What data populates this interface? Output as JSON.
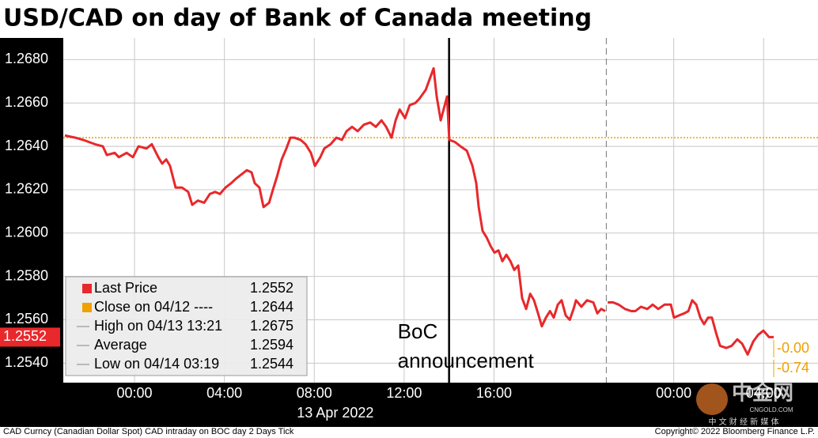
{
  "chart_data": {
    "type": "line",
    "title": "USD/CAD on day of Bank of Canada meeting",
    "x": [
      -3.1,
      -2.64,
      -2.29,
      -1.76,
      -1.41,
      -1.23,
      -0.88,
      -0.7,
      -0.35,
      -0.07,
      0.18,
      0.53,
      0.77,
      1.06,
      1.23,
      1.41,
      1.58,
      1.83,
      2.11,
      2.39,
      2.57,
      2.82,
      3.1,
      3.35,
      3.59,
      3.8,
      4.05,
      4.3,
      4.51,
      4.75,
      5.0,
      5.21,
      5.35,
      5.56,
      5.74,
      5.99,
      6.16,
      6.34,
      6.55,
      6.76,
      6.94,
      7.11,
      7.39,
      7.61,
      7.85,
      8.03,
      8.27,
      8.45,
      8.73,
      8.98,
      9.23,
      9.44,
      9.68,
      9.93,
      10.21,
      10.49,
      10.74,
      10.99,
      11.2,
      11.44,
      11.62,
      11.8,
      12.04,
      12.25,
      12.5,
      12.68,
      12.96,
      13.31,
      13.45,
      13.63,
      13.91,
      14.01,
      14.26,
      14.51,
      14.79,
      15.04,
      15.21,
      15.32,
      15.49,
      15.67,
      15.85,
      16.02,
      16.2,
      16.37,
      16.55,
      16.73,
      16.9,
      17.08,
      17.25,
      17.43,
      17.61,
      17.78,
      17.96,
      18.13,
      18.31,
      18.49,
      18.66,
      18.84,
      19.01,
      19.19,
      19.37,
      19.54,
      19.65,
      19.89,
      20.14,
      20.42,
      20.6,
      20.77,
      20.95,
      21.0,
      21.06,
      21.3,
      21.55,
      21.83,
      22.11,
      22.29,
      22.54,
      22.82,
      23.06,
      23.31,
      23.59,
      23.87,
      24.01,
      24.23,
      24.47,
      24.65,
      24.82,
      25.0,
      25.18,
      25.35,
      25.53,
      25.7,
      25.88,
      26.06,
      26.34,
      26.58,
      26.83,
      27.04,
      27.29,
      27.54,
      27.75,
      27.99,
      28.24,
      28.45
    ],
    "series": [
      {
        "name": "Last Price",
        "color": "#e8282b",
        "values": [
          1.2645,
          1.2644,
          1.2643,
          1.2641,
          1.264,
          1.2636,
          1.2637,
          1.2635,
          1.2637,
          1.2635,
          1.264,
          1.2639,
          1.2641,
          1.2635,
          1.2632,
          1.2634,
          1.2631,
          1.2621,
          1.2621,
          1.2619,
          1.2613,
          1.2615,
          1.2614,
          1.2618,
          1.2619,
          1.2618,
          1.2621,
          1.2623,
          1.2625,
          1.2627,
          1.2629,
          1.2628,
          1.2623,
          1.2621,
          1.2612,
          1.2614,
          1.262,
          1.2626,
          1.2634,
          1.2639,
          1.2644,
          1.2644,
          1.2643,
          1.2641,
          1.2637,
          1.2631,
          1.2635,
          1.2639,
          1.2641,
          1.2644,
          1.2643,
          1.2647,
          1.2649,
          1.2647,
          1.265,
          1.2651,
          1.2649,
          1.2652,
          1.2649,
          1.2644,
          1.2652,
          1.2657,
          1.2653,
          1.2659,
          1.266,
          1.2662,
          1.2666,
          1.2676,
          1.2663,
          1.2652,
          1.2663,
          1.2643,
          1.2642,
          1.264,
          1.2638,
          1.2631,
          1.2623,
          1.2612,
          1.2601,
          1.2598,
          1.2594,
          1.2591,
          1.2592,
          1.2587,
          1.259,
          1.2587,
          1.2583,
          1.2585,
          1.257,
          1.2565,
          1.2572,
          1.2569,
          1.2563,
          1.2557,
          1.2561,
          1.2564,
          1.2561,
          1.2567,
          1.2569,
          1.2562,
          1.256,
          1.2565,
          1.2569,
          1.2566,
          1.2569,
          1.2568,
          1.2563,
          1.2565,
          1.2564,
          null,
          1.2568,
          1.2568,
          1.2567,
          1.2565,
          1.2564,
          1.2564,
          1.2566,
          1.2565,
          1.2567,
          1.2565,
          1.2567,
          1.2567,
          1.2561,
          1.2562,
          1.2563,
          1.2564,
          1.2569,
          1.2567,
          1.2561,
          1.2558,
          1.2561,
          1.2561,
          1.2554,
          1.2548,
          1.2547,
          1.2548,
          1.2551,
          1.2549,
          1.2544,
          1.255,
          1.2553,
          1.2555,
          1.2552,
          1.2552
        ]
      }
    ],
    "last_price": 1.2552,
    "reference_line": {
      "name": "Close on 04/12 ----",
      "value": 1.2644,
      "color": "#f0a000"
    },
    "stats": [
      {
        "label": "High on 04/13 13:21",
        "value": 1.2675
      },
      {
        "label": "Average",
        "value": 1.2594
      },
      {
        "label": "Low on 04/14 03:19",
        "value": 1.2544
      }
    ],
    "event_line": {
      "x": 14.0,
      "lines": [
        "BoC",
        "announcement"
      ]
    },
    "session_break": 21.0,
    "xlim": [
      -3.17,
      30.42
    ],
    "xticks": [
      {
        "value": 0,
        "label": "00:00"
      },
      {
        "value": 4,
        "label": "04:00"
      },
      {
        "value": 8,
        "label": "08:00"
      },
      {
        "value": 12,
        "label": "12:00"
      },
      {
        "value": 16,
        "label": "16:00"
      },
      {
        "value": 24,
        "label": "00:00"
      },
      {
        "value": 28,
        "label": "04:00"
      }
    ],
    "x_date_label": "13 Apr 2022",
    "ylim": [
      1.2531,
      1.269
    ],
    "yticks": [
      {
        "value": 1.254,
        "label": "1.2540"
      },
      {
        "value": 1.256,
        "label": "1.2560"
      },
      {
        "value": 1.258,
        "label": "1.2580"
      },
      {
        "value": 1.26,
        "label": "1.2600"
      },
      {
        "value": 1.262,
        "label": "1.2620"
      },
      {
        "value": 1.264,
        "label": "1.2640"
      },
      {
        "value": 1.266,
        "label": "1.2660"
      },
      {
        "value": 1.268,
        "label": "1.2680"
      }
    ],
    "grid": true,
    "right_labels": [
      "-0.00",
      "-0.74"
    ],
    "footer_left": "CAD Curncy (Canadian Dollar Spot) CAD intraday on BOC day 2 Days  Tick",
    "footer_right": "Copyright© 2022 Bloomberg Finance L.P.",
    "watermark": [
      "中金网",
      "CNGOLD.COM",
      "中 文 财 经 新 媒 体"
    ]
  }
}
